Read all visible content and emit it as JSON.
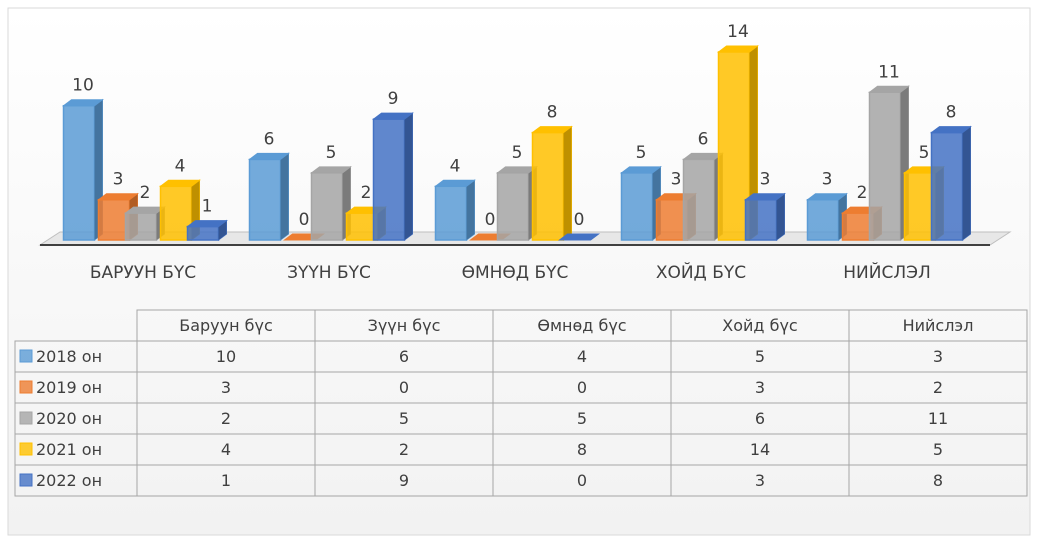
{
  "chart_data": {
    "type": "bar3d",
    "categories": [
      "БАРУУН БҮС",
      "ЗҮҮН БҮС",
      "ӨМНӨД БҮС",
      "ХОЙД БҮС",
      "НИЙСЛЭЛ"
    ],
    "table_columns": [
      "Баруун бүс",
      "Зүүн бүс",
      "Өмнөд бүс",
      "Хойд бүс",
      "Нийслэл"
    ],
    "series": [
      {
        "name": "2018 он",
        "color": "#5b9bd5",
        "values": [
          10,
          6,
          4,
          5,
          3
        ]
      },
      {
        "name": "2019 он",
        "color": "#ed7d31",
        "values": [
          3,
          0,
          0,
          3,
          2
        ]
      },
      {
        "name": "2020 он",
        "color": "#a5a5a5",
        "values": [
          2,
          5,
          5,
          6,
          11
        ]
      },
      {
        "name": "2021 он",
        "color": "#ffc000",
        "values": [
          4,
          2,
          8,
          14,
          5
        ]
      },
      {
        "name": "2022 он",
        "color": "#4472c4",
        "values": [
          1,
          9,
          0,
          3,
          8
        ]
      }
    ]
  }
}
